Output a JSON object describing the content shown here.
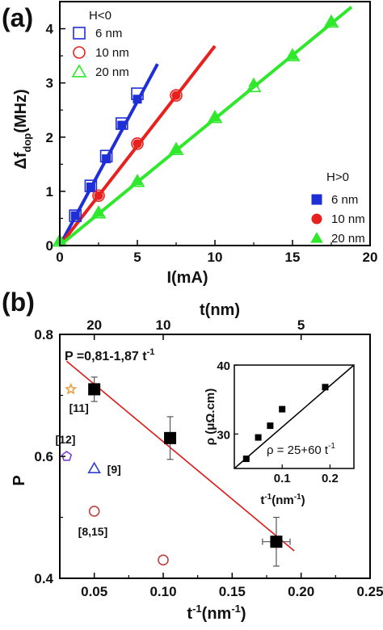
{
  "chart_data": [
    {
      "type": "scatter",
      "panel_label": "(a)",
      "xlabel": "I(mA)",
      "ylabel_main": "Δf",
      "ylabel_sub": "dop",
      "ylabel_unit": "(MHz)",
      "xlim": [
        0,
        20
      ],
      "ylim": [
        0,
        4.5
      ],
      "xticks": [
        "0",
        "5",
        "10",
        "15",
        "20"
      ],
      "yticks": [
        "0",
        "1",
        "2",
        "3",
        "4"
      ],
      "legend_neg_title": "H<0",
      "legend_pos_title": "H>0",
      "series": [
        {
          "name": "6 nm",
          "group": "H<0",
          "marker": "square-open",
          "color": "#1f2fd6",
          "x": [
            1,
            2,
            3,
            4,
            5
          ],
          "y": [
            0.55,
            1.1,
            1.65,
            2.25,
            2.8
          ]
        },
        {
          "name": "10 nm",
          "group": "H<0",
          "marker": "circle-open",
          "color": "#e8201e",
          "x": [
            2.5,
            5,
            7.5
          ],
          "y": [
            0.92,
            1.88,
            2.77
          ]
        },
        {
          "name": "20 nm",
          "group": "H<0",
          "marker": "triangle-open",
          "color": "#2fe82c",
          "x": [
            0,
            2.5,
            5,
            7.5,
            10,
            12.5,
            15,
            17.5
          ],
          "y": [
            0.08,
            0.6,
            1.18,
            1.77,
            2.36,
            2.93,
            3.5,
            4.12
          ]
        },
        {
          "name": "6 nm",
          "group": "H>0",
          "marker": "square-filled",
          "color": "#1f2fd6",
          "x": [
            1,
            2,
            3,
            4,
            5
          ],
          "y": [
            0.55,
            1.08,
            1.6,
            2.22,
            2.7
          ]
        },
        {
          "name": "10 nm",
          "group": "H>0",
          "marker": "circle-filled",
          "color": "#e8201e",
          "x": [
            2.5,
            5,
            7.5
          ],
          "y": [
            0.92,
            1.88,
            2.77
          ]
        },
        {
          "name": "20 nm",
          "group": "H>0",
          "marker": "triangle-filled",
          "color": "#2fe82c",
          "x": [
            0,
            2.5,
            5,
            7.5,
            10,
            12.5,
            15,
            17.5
          ],
          "y": [
            0.08,
            0.6,
            1.18,
            1.77,
            2.36,
            3.0,
            3.5,
            4.12
          ]
        }
      ],
      "fit_lines": [
        {
          "color": "#1f2fd6",
          "x": [
            0,
            6.3
          ],
          "y": [
            0,
            3.35
          ]
        },
        {
          "color": "#e8201e",
          "x": [
            0,
            10
          ],
          "y": [
            0,
            3.68
          ]
        },
        {
          "color": "#2fe82c",
          "x": [
            0,
            18.8
          ],
          "y": [
            0,
            4.4
          ]
        }
      ]
    },
    {
      "type": "scatter",
      "panel_label": "(b)",
      "xlabel_main": "t",
      "xlabel_sup": "-1",
      "xlabel_unit": "(nm",
      "xlabel_unit_sup": "-1",
      "xlabel_close": ")",
      "ylabel": "P",
      "top_axis_label": "t(nm)",
      "xlim": [
        0.025,
        0.25
      ],
      "ylim": [
        0.4,
        0.8
      ],
      "xticks": [
        "0.05",
        "0.10",
        "0.15",
        "0.20",
        "0.25"
      ],
      "yticks": [
        "0.4",
        "0.6",
        "0.8"
      ],
      "top_ticks": [
        {
          "t": 20,
          "label": "20"
        },
        {
          "t": 10,
          "label": "10"
        },
        {
          "t": 5,
          "label": "5"
        }
      ],
      "fit_equation_main": "P =0,81-1,87 t",
      "fit_equation_sup": "-1",
      "fit_line": {
        "color": "#e01818",
        "x": [
          0.03,
          0.195
        ],
        "y": [
          0.756,
          0.445
        ]
      },
      "measured": {
        "marker": "square-filled",
        "color": "#000000",
        "x": [
          0.05,
          0.105,
          0.182
        ],
        "y": [
          0.71,
          0.63,
          0.46
        ],
        "xerr": [
          0.0,
          0.0,
          0.01
        ],
        "yerr": [
          0.02,
          0.035,
          0.04
        ]
      },
      "references": [
        {
          "label": "[11]",
          "marker": "star-open",
          "color": "#e8a040",
          "x": 0.033,
          "y": 0.71
        },
        {
          "label": "[12]",
          "marker": "pentagon-open",
          "color": "#7a3fd6",
          "x": 0.03,
          "y": 0.6
        },
        {
          "label": "[9]",
          "marker": "triangle-open",
          "color": "#2f3fd6",
          "x": 0.05,
          "y": 0.58
        },
        {
          "label": "[8,15]",
          "marker": "circle-open",
          "color": "#c04040",
          "x": 0.05,
          "y": 0.51
        },
        {
          "label": "",
          "marker": "circle-open",
          "color": "#c04040",
          "x": 0.1,
          "y": 0.43
        }
      ],
      "inset": {
        "xlabel_main": "t",
        "xlabel_sup": "-1",
        "xlabel_unit": "(nm",
        "xlabel_unit_sup": "-1",
        "xlabel_close": ")",
        "ylabel": "ρ (μΩ.cm)",
        "xlim": [
          0,
          0.25
        ],
        "ylim": [
          25,
          40
        ],
        "xticks": [
          "0.1",
          "0.2"
        ],
        "yticks": [
          "30",
          "40"
        ],
        "fit_equation_main": "ρ = 25+60 t",
        "fit_equation_sup": "-1",
        "x": [
          0.025,
          0.05,
          0.075,
          0.1,
          0.19
        ],
        "y": [
          26.4,
          29.5,
          31.2,
          33.6,
          36.8
        ],
        "fit_line": {
          "x": [
            0.0,
            0.25
          ],
          "y": [
            25.0,
            40.0
          ]
        }
      }
    }
  ]
}
